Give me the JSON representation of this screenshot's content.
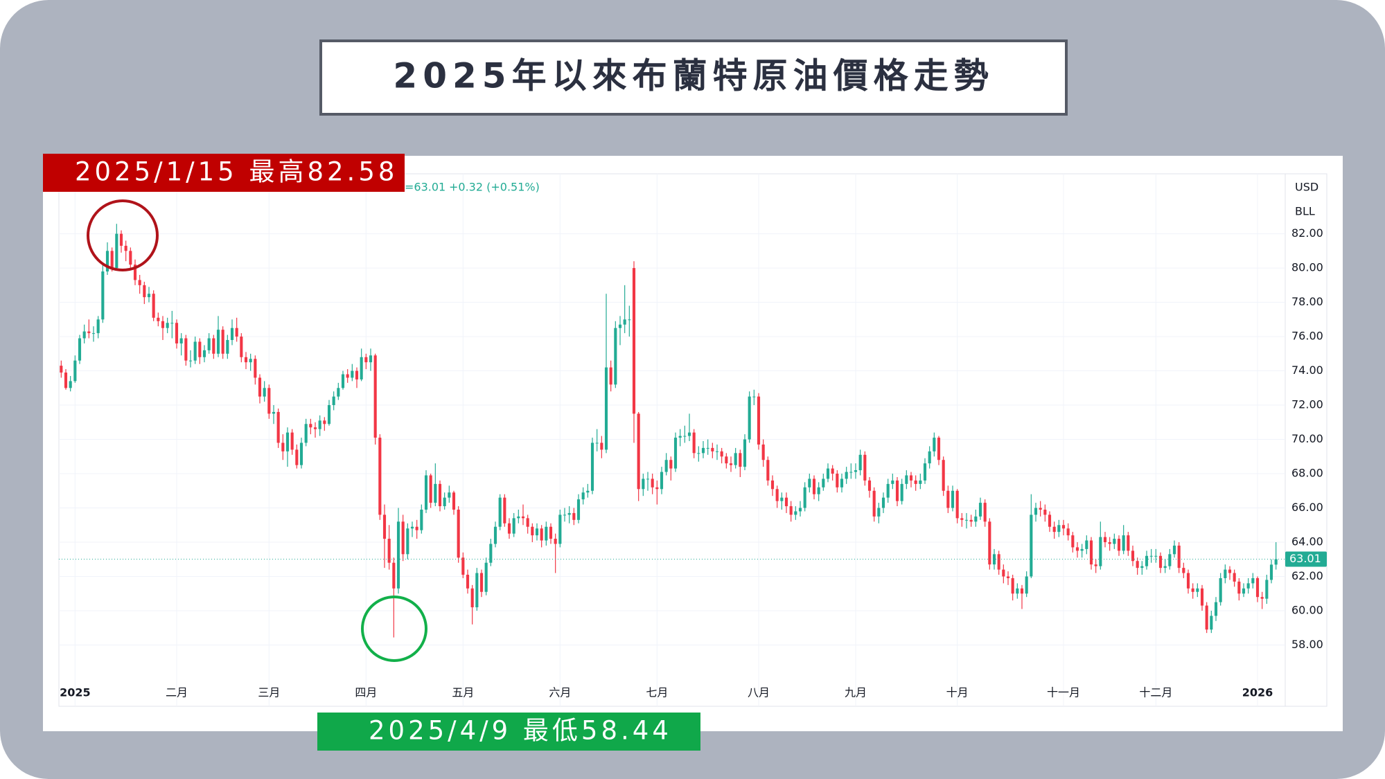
{
  "chart_data": {
    "type": "candlestick",
    "title": "2025年以來布蘭特原油價格走勢",
    "currency": "USD",
    "unit": "BLL",
    "legend_price": "=63.01",
    "legend_change": "+0.32 (+0.51%)",
    "last_price": 63.01,
    "up_color": "#22ab94",
    "down_color": "#f23645",
    "grid": true,
    "annotations": [
      {
        "text": "2025/1/15 最高82.58",
        "color": "#c00000"
      },
      {
        "text": "2025/4/9 最低58.44",
        "color": "#10a84a"
      }
    ],
    "ylim": [
      56.2,
      85.5
    ],
    "yticks": [
      {
        "value": 58,
        "label": "58.00"
      },
      {
        "value": 60,
        "label": "60.00"
      },
      {
        "value": 62,
        "label": "62.00"
      },
      {
        "value": 64,
        "label": "64.00"
      },
      {
        "value": 66,
        "label": "66.00"
      },
      {
        "value": 68,
        "label": "68.00"
      },
      {
        "value": 70,
        "label": "70.00"
      },
      {
        "value": 72,
        "label": "72.00"
      },
      {
        "value": 74,
        "label": "74.00"
      },
      {
        "value": 76,
        "label": "76.00"
      },
      {
        "value": 78,
        "label": "78.00"
      },
      {
        "value": 80,
        "label": "80.00"
      },
      {
        "value": 82,
        "label": "82.00"
      }
    ],
    "categories": [
      null,
      null,
      null,
      "2025",
      null,
      null,
      null,
      null,
      null,
      null,
      null,
      null,
      null,
      null,
      null,
      null,
      null,
      null,
      null,
      null,
      null,
      null,
      null,
      null,
      null,
      "二月",
      null,
      null,
      null,
      null,
      null,
      null,
      null,
      null,
      null,
      null,
      null,
      null,
      null,
      null,
      null,
      null,
      null,
      null,
      null,
      "三月",
      null,
      null,
      null,
      null,
      null,
      null,
      null,
      null,
      null,
      null,
      null,
      null,
      null,
      null,
      null,
      null,
      null,
      null,
      null,
      null,
      "四月",
      null,
      null,
      null,
      null,
      null,
      null,
      null,
      null,
      null,
      null,
      null,
      null,
      null,
      null,
      null,
      null,
      null,
      null,
      null,
      null,
      "五月",
      null,
      null,
      null,
      null,
      null,
      null,
      null,
      null,
      null,
      null,
      null,
      null,
      null,
      null,
      null,
      null,
      null,
      null,
      null,
      null,
      "六月",
      null,
      null,
      null,
      null,
      null,
      null,
      null,
      null,
      null,
      null,
      null,
      null,
      null,
      null,
      null,
      null,
      null,
      null,
      null,
      null,
      "七月",
      null,
      null,
      null,
      null,
      null,
      null,
      null,
      null,
      null,
      null,
      null,
      null,
      null,
      null,
      null,
      null,
      null,
      null,
      null,
      null,
      null,
      "八月",
      null,
      null,
      null,
      null,
      null,
      null,
      null,
      null,
      null,
      null,
      null,
      null,
      null,
      null,
      null,
      null,
      null,
      null,
      null,
      null,
      "九月",
      null,
      null,
      null,
      null,
      null,
      null,
      null,
      null,
      null,
      null,
      null,
      null,
      null,
      null,
      null,
      null,
      null,
      null,
      null,
      null,
      null,
      "十月",
      null,
      null,
      null,
      null,
      null,
      null,
      null,
      null,
      null,
      null,
      null,
      null,
      null,
      null,
      null,
      null,
      null,
      null,
      null,
      null,
      null,
      null,
      "十一月",
      null,
      null,
      null,
      null,
      null,
      null,
      null,
      null,
      null,
      null,
      null,
      null,
      null,
      null,
      null,
      null,
      null,
      null,
      null,
      "十二月",
      null,
      null,
      null,
      null,
      null,
      null,
      null,
      null,
      null,
      null,
      null,
      null,
      null,
      null,
      null,
      null,
      null,
      null,
      null,
      null,
      null,
      "2026",
      null,
      null,
      null,
      null
    ],
    "open": [
      74.3,
      73.9,
      73.0,
      73.4,
      74.6,
      75.9,
      76.3,
      76.2,
      76.2,
      77.0,
      79.8,
      81.0,
      80.0,
      82.0,
      81.3,
      81.0,
      80.2,
      79.3,
      79.0,
      78.3,
      78.5,
      77.1,
      76.9,
      76.5,
      76.8,
      76.8,
      75.6,
      75.9,
      74.6,
      74.6,
      75.7,
      74.8,
      75.2,
      75.9,
      75.0,
      76.4,
      75.0,
      75.8,
      76.5,
      76.0,
      74.8,
      74.5,
      74.7,
      73.6,
      72.5,
      73.0,
      71.5,
      71.6,
      69.8,
      69.3,
      70.4,
      69.4,
      68.5,
      69.8,
      70.9,
      70.7,
      70.6,
      71.1,
      70.9,
      72.0,
      72.5,
      73.0,
      73.8,
      73.6,
      74.0,
      73.5,
      74.8,
      74.5,
      74.9,
      70.1,
      65.6,
      64.2,
      62.8,
      61.3,
      65.2,
      63.3,
      64.8,
      64.9,
      64.7,
      65.9,
      67.9,
      66.3,
      67.4,
      66.1,
      66.6,
      66.9,
      65.9,
      63.1,
      62.1,
      61.3,
      60.2,
      62.2,
      61.1,
      62.8,
      63.9,
      64.9,
      66.6,
      65.1,
      64.5,
      65.4,
      65.5,
      65.4,
      64.9,
      64.4,
      64.8,
      64.1,
      64.9,
      64.2,
      63.9,
      65.6,
      65.6,
      65.7,
      65.3,
      66.5,
      66.9,
      67.0,
      69.8,
      69.8,
      69.4,
      74.2,
      73.2,
      76.5,
      76.7,
      77.0,
      80.0,
      71.5,
      67.1,
      67.7,
      67.7,
      67.2,
      67.1,
      68.1,
      68.8,
      68.3,
      70.1,
      70.2,
      70.2,
      70.4,
      69.2,
      69.2,
      69.5,
      69.5,
      69.3,
      69.3,
      69.0,
      68.6,
      68.5,
      69.2,
      68.4,
      70.0,
      72.5,
      72.5,
      69.7,
      68.8,
      67.6,
      67.1,
      66.4,
      66.6,
      66.1,
      65.6,
      65.8,
      66.0,
      67.2,
      67.7,
      66.8,
      67.2,
      67.7,
      68.3,
      68.0,
      67.2,
      67.7,
      68.1,
      68.1,
      68.2,
      69.1,
      67.6,
      67.0,
      65.5,
      66.0,
      66.6,
      67.4,
      67.6,
      66.4,
      67.4,
      67.9,
      67.6,
      67.4,
      67.6,
      68.6,
      69.3,
      70.1,
      68.8,
      67.0,
      66.0,
      67.0,
      65.4,
      65.3,
      65.3,
      65.2,
      65.5,
      66.3,
      65.2,
      62.7,
      63.3,
      62.4,
      62.0,
      61.9,
      61.0,
      61.3,
      61.0,
      62.0,
      65.6,
      66.0,
      65.9,
      65.6,
      64.9,
      64.6,
      65.0,
      64.8,
      64.4,
      63.7,
      63.5,
      63.6,
      64.1,
      62.7,
      62.6,
      64.3,
      64.0,
      63.9,
      64.2,
      63.5,
      64.4,
      63.5,
      62.9,
      62.5,
      62.6,
      63.2,
      63.2,
      63.2,
      62.5,
      62.6,
      63.3,
      63.8,
      62.5,
      62.2,
      61.3,
      61.1,
      61.3,
      60.3,
      58.9,
      59.7,
      60.5,
      61.9,
      62.4,
      62.2,
      61.7,
      61.0,
      61.3,
      61.6,
      61.9,
      60.8,
      60.7,
      61.8,
      62.69
    ],
    "high": [
      74.6,
      74.1,
      73.7,
      74.9,
      76.1,
      76.7,
      77.0,
      76.6,
      77.2,
      80.3,
      81.5,
      81.2,
      82.58,
      82.2,
      81.6,
      81.2,
      80.5,
      79.6,
      79.2,
      78.9,
      78.7,
      77.4,
      77.2,
      77.1,
      77.5,
      77.0,
      76.2,
      76.1,
      75.2,
      76.0,
      75.9,
      75.5,
      76.2,
      76.1,
      77.2,
      76.6,
      76.1,
      77.0,
      77.1,
      76.2,
      75.1,
      75.0,
      74.9,
      73.8,
      73.4,
      73.2,
      72.0,
      71.8,
      70.3,
      70.7,
      70.6,
      69.7,
      70.1,
      71.2,
      71.2,
      71.0,
      71.4,
      71.3,
      72.3,
      72.8,
      73.3,
      74.0,
      74.1,
      74.4,
      74.2,
      75.3,
      75.0,
      75.3,
      75.0,
      70.3,
      66.2,
      65.0,
      63.1,
      66.0,
      65.6,
      65.1,
      65.2,
      65.3,
      66.2,
      68.2,
      68.0,
      68.6,
      67.6,
      66.9,
      67.3,
      67.0,
      66.1,
      63.4,
      62.4,
      61.5,
      62.5,
      62.4,
      63.1,
      64.2,
      65.2,
      66.8,
      66.8,
      65.4,
      65.7,
      65.9,
      66.2,
      65.6,
      65.1,
      65.1,
      65.0,
      65.2,
      65.1,
      64.5,
      65.9,
      66.0,
      66.1,
      66.0,
      66.8,
      67.2,
      67.4,
      70.1,
      70.6,
      70.2,
      78.5,
      74.6,
      76.9,
      77.2,
      79.0,
      77.8,
      80.4,
      71.6,
      68.0,
      68.1,
      68.0,
      67.6,
      68.4,
      69.2,
      69.0,
      70.4,
      70.6,
      70.8,
      71.5,
      70.6,
      69.6,
      69.9,
      70.0,
      69.8,
      69.7,
      69.5,
      69.2,
      69.0,
      69.5,
      69.4,
      70.3,
      72.8,
      72.9,
      72.7,
      70.0,
      69.0,
      67.9,
      67.3,
      66.9,
      66.9,
      66.4,
      66.1,
      66.4,
      67.5,
      68.0,
      67.9,
      67.5,
      68.0,
      68.6,
      68.5,
      68.2,
      68.0,
      68.4,
      68.6,
      68.6,
      69.4,
      69.3,
      67.8,
      67.2,
      66.3,
      66.9,
      67.7,
      68.0,
      67.8,
      67.7,
      68.2,
      68.1,
      67.9,
      68.0,
      68.9,
      69.6,
      70.4,
      70.2,
      69.0,
      67.3,
      67.3,
      67.1,
      65.7,
      65.7,
      65.6,
      65.9,
      66.6,
      66.5,
      65.4,
      63.6,
      63.5,
      62.7,
      62.3,
      62.1,
      61.6,
      61.5,
      62.3,
      66.8,
      66.3,
      66.4,
      66.2,
      65.8,
      65.2,
      65.3,
      65.3,
      65.1,
      64.6,
      64.0,
      63.9,
      64.4,
      64.3,
      63.0,
      65.2,
      64.6,
      64.3,
      64.5,
      64.4,
      65.0,
      64.6,
      63.8,
      63.1,
      62.9,
      63.5,
      63.6,
      63.6,
      63.4,
      63.0,
      63.6,
      64.1,
      64.0,
      62.8,
      62.4,
      61.6,
      61.6,
      61.5,
      60.5,
      60.0,
      60.8,
      62.2,
      62.7,
      62.6,
      62.4,
      61.9,
      61.6,
      61.9,
      62.2,
      62.0,
      61.1,
      62.1,
      63.0,
      64.0
    ],
    "low": [
      73.6,
      72.9,
      72.8,
      73.3,
      74.4,
      75.6,
      75.9,
      75.7,
      75.9,
      76.8,
      79.6,
      79.8,
      79.9,
      80.9,
      80.4,
      79.9,
      79.0,
      78.5,
      77.9,
      78.0,
      76.9,
      76.6,
      75.8,
      76.2,
      75.9,
      75.3,
      74.9,
      74.3,
      74.2,
      74.4,
      74.4,
      74.5,
      75.0,
      74.7,
      74.8,
      74.7,
      74.7,
      75.5,
      75.7,
      74.5,
      74.1,
      74.0,
      73.2,
      72.1,
      72.2,
      71.2,
      70.9,
      69.5,
      68.8,
      68.4,
      69.1,
      68.3,
      68.3,
      69.6,
      70.3,
      70.1,
      70.2,
      70.5,
      70.8,
      71.7,
      72.3,
      72.9,
      73.3,
      73.4,
      73.0,
      73.4,
      74.1,
      74.0,
      69.7,
      65.3,
      62.5,
      62.4,
      58.44,
      61.0,
      62.9,
      63.0,
      64.3,
      64.2,
      64.5,
      65.7,
      66.0,
      66.1,
      65.8,
      65.9,
      66.3,
      65.6,
      62.8,
      61.9,
      61.0,
      59.2,
      60.0,
      60.8,
      60.9,
      62.6,
      63.7,
      64.7,
      64.9,
      64.2,
      64.3,
      65.1,
      65.0,
      64.5,
      64.0,
      64.1,
      63.7,
      63.8,
      63.9,
      62.2,
      63.7,
      65.2,
      65.1,
      65.0,
      65.1,
      66.2,
      66.6,
      66.8,
      69.3,
      68.9,
      69.2,
      72.8,
      73.0,
      75.5,
      76.2,
      76.0,
      69.8,
      66.4,
      66.7,
      67.0,
      66.8,
      66.2,
      66.8,
      67.9,
      67.6,
      68.1,
      69.6,
      69.8,
      69.9,
      68.9,
      68.7,
      68.9,
      69.1,
      68.9,
      68.8,
      68.6,
      68.3,
      68.1,
      68.3,
      67.8,
      68.2,
      69.8,
      72.0,
      69.4,
      68.4,
      67.3,
      66.7,
      66.0,
      65.9,
      65.7,
      65.2,
      65.3,
      65.5,
      65.8,
      66.9,
      66.5,
      66.4,
      67.0,
      67.5,
      67.6,
      66.9,
      66.9,
      67.4,
      67.7,
      67.7,
      67.9,
      67.3,
      66.6,
      65.2,
      65.1,
      65.7,
      66.3,
      67.1,
      66.1,
      66.2,
      67.1,
      67.2,
      67.0,
      67.1,
      67.4,
      68.3,
      69.0,
      68.5,
      66.7,
      65.7,
      65.8,
      65.1,
      64.9,
      64.8,
      64.9,
      64.9,
      65.3,
      64.9,
      62.4,
      62.4,
      62.1,
      61.6,
      61.5,
      60.6,
      60.7,
      60.1,
      60.8,
      61.9,
      65.2,
      65.5,
      65.2,
      64.6,
      64.2,
      64.3,
      64.4,
      64.1,
      63.4,
      63.1,
      63.1,
      63.3,
      62.4,
      62.2,
      62.4,
      63.7,
      63.5,
      63.6,
      63.2,
      63.3,
      63.2,
      62.6,
      62.1,
      62.1,
      62.4,
      62.8,
      62.8,
      62.2,
      62.2,
      62.4,
      63.1,
      62.2,
      61.9,
      61.0,
      60.7,
      60.8,
      60.0,
      58.7,
      58.7,
      59.4,
      60.3,
      61.6,
      61.8,
      61.4,
      60.6,
      60.8,
      61.0,
      61.3,
      60.5,
      60.1,
      60.4,
      61.6,
      62.4
    ],
    "close": [
      73.9,
      73.0,
      73.4,
      74.6,
      75.9,
      76.3,
      76.2,
      76.2,
      77.0,
      79.8,
      81.0,
      80.0,
      82.0,
      81.3,
      81.0,
      80.2,
      79.3,
      79.0,
      78.3,
      78.5,
      77.1,
      76.9,
      76.5,
      76.8,
      76.8,
      75.6,
      75.9,
      74.6,
      74.6,
      75.7,
      74.8,
      75.2,
      75.9,
      75.0,
      76.4,
      75.0,
      75.8,
      76.5,
      76.0,
      74.8,
      74.5,
      74.7,
      73.6,
      72.5,
      73.0,
      71.5,
      71.6,
      69.8,
      69.3,
      70.4,
      69.4,
      68.5,
      69.8,
      70.9,
      70.7,
      70.6,
      71.1,
      70.9,
      72.0,
      72.5,
      73.0,
      73.8,
      73.6,
      74.0,
      73.5,
      74.8,
      74.5,
      74.9,
      70.1,
      65.6,
      64.2,
      62.8,
      61.3,
      65.2,
      63.3,
      64.8,
      64.9,
      64.7,
      65.9,
      67.9,
      66.3,
      67.4,
      66.1,
      66.6,
      66.9,
      65.9,
      63.1,
      62.1,
      61.3,
      60.2,
      62.2,
      61.1,
      62.8,
      63.9,
      64.9,
      66.6,
      65.1,
      64.5,
      65.4,
      65.5,
      65.4,
      64.9,
      64.4,
      64.8,
      64.1,
      64.9,
      64.2,
      63.9,
      65.6,
      65.6,
      65.7,
      65.3,
      66.5,
      66.9,
      67.0,
      69.8,
      69.8,
      69.4,
      74.2,
      73.2,
      76.5,
      76.7,
      77.0,
      77.0,
      71.5,
      67.1,
      67.7,
      67.7,
      67.2,
      67.1,
      68.1,
      68.8,
      68.3,
      70.1,
      70.2,
      70.2,
      70.4,
      69.2,
      69.2,
      69.5,
      69.5,
      69.3,
      69.3,
      69.0,
      68.6,
      68.5,
      69.2,
      68.4,
      70.0,
      72.5,
      72.5,
      69.7,
      68.8,
      67.6,
      67.1,
      66.4,
      66.6,
      66.1,
      65.6,
      65.8,
      66.0,
      67.2,
      67.7,
      66.8,
      67.2,
      67.7,
      68.3,
      68.0,
      67.2,
      67.7,
      68.1,
      68.1,
      68.2,
      69.1,
      67.6,
      67.0,
      65.5,
      66.0,
      66.6,
      67.4,
      67.6,
      66.4,
      67.4,
      67.9,
      67.6,
      67.4,
      67.6,
      68.6,
      69.3,
      70.1,
      68.8,
      67.0,
      66.0,
      67.0,
      65.4,
      65.3,
      65.3,
      65.2,
      65.5,
      66.3,
      65.2,
      62.7,
      63.3,
      62.4,
      62.0,
      61.9,
      61.0,
      61.3,
      61.0,
      62.0,
      65.6,
      66.0,
      65.9,
      65.6,
      64.9,
      64.6,
      65.0,
      64.8,
      64.4,
      63.7,
      63.5,
      63.6,
      64.1,
      62.7,
      62.6,
      64.3,
      64.0,
      63.9,
      64.2,
      63.5,
      64.4,
      63.5,
      62.9,
      62.5,
      62.6,
      63.2,
      63.2,
      63.2,
      62.5,
      62.6,
      63.3,
      63.8,
      62.5,
      62.2,
      61.3,
      61.1,
      61.3,
      60.3,
      58.9,
      59.7,
      60.5,
      61.9,
      62.4,
      62.2,
      61.7,
      61.0,
      61.3,
      61.6,
      61.9,
      60.8,
      60.7,
      61.8,
      62.69,
      63.01
    ]
  }
}
